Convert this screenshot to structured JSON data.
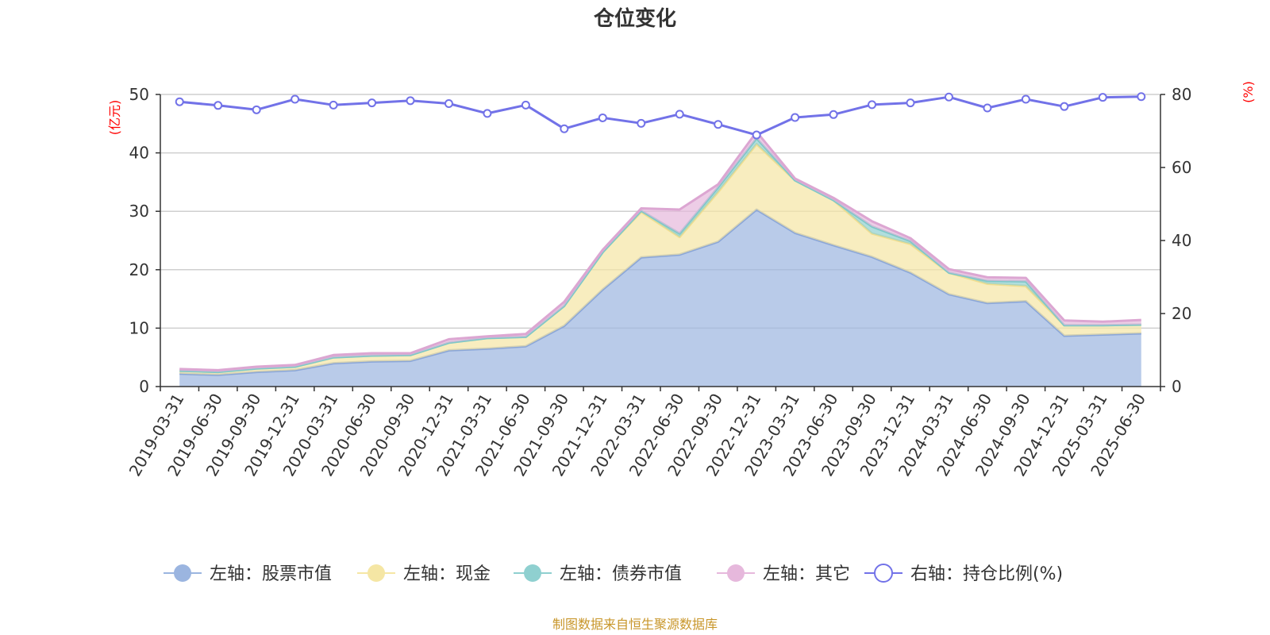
{
  "chart_data": {
    "type": "area",
    "title": "仓位变化",
    "left_axis": {
      "unit": "(亿元)",
      "min": 0,
      "max": 50,
      "ticks": [
        0,
        10,
        20,
        30,
        40,
        50
      ]
    },
    "right_axis": {
      "unit": "(%)",
      "min": 0,
      "max": 80,
      "ticks": [
        0,
        20,
        40,
        60,
        80
      ]
    },
    "grid": true,
    "legend_position": "bottom",
    "categories": [
      "2019-03-31",
      "2019-06-30",
      "2019-09-30",
      "2019-12-31",
      "2020-03-31",
      "2020-06-30",
      "2020-09-30",
      "2020-12-31",
      "2021-03-31",
      "2021-06-30",
      "2021-09-30",
      "2021-12-31",
      "2022-03-31",
      "2022-06-30",
      "2022-09-30",
      "2022-12-31",
      "2023-03-31",
      "2023-06-30",
      "2023-09-30",
      "2023-12-31",
      "2024-03-31",
      "2024-06-30",
      "2024-09-30",
      "2024-12-31",
      "2025-03-31",
      "2025-06-30"
    ],
    "series": [
      {
        "name": "左轴：股票市值",
        "axis": "left",
        "type": "stacked-area",
        "color": "#9bb5e0",
        "values": [
          2.2,
          2.0,
          2.5,
          2.8,
          4.0,
          4.3,
          4.4,
          6.2,
          6.5,
          6.9,
          10.4,
          16.6,
          22.1,
          22.6,
          24.8,
          30.3,
          26.3,
          24.2,
          22.2,
          19.5,
          15.8,
          14.3,
          14.6,
          8.7,
          8.9,
          9.1
        ]
      },
      {
        "name": "左轴：现金",
        "axis": "left",
        "type": "stacked-area",
        "color": "#f5e6a4",
        "values": [
          0.5,
          0.5,
          0.6,
          0.6,
          1.0,
          1.0,
          1.0,
          1.3,
          1.8,
          1.6,
          3.4,
          6.4,
          7.8,
          3.0,
          8.5,
          11.2,
          9.0,
          7.7,
          4.0,
          4.9,
          3.7,
          3.3,
          2.6,
          1.8,
          1.6,
          1.5
        ]
      },
      {
        "name": "左轴：债券市值",
        "axis": "left",
        "type": "stacked-area",
        "color": "#8fd0d0",
        "values": [
          0,
          0,
          0,
          0,
          0,
          0,
          0,
          0,
          0,
          0,
          0,
          0,
          0.2,
          0.6,
          0.8,
          1.0,
          0,
          0,
          1.2,
          0.5,
          0,
          0.5,
          0.8,
          0,
          0,
          0
        ]
      },
      {
        "name": "左轴：其它",
        "axis": "left",
        "type": "stacked-area",
        "color": "#e6b8dc",
        "values": [
          0.3,
          0.3,
          0.3,
          0.3,
          0.4,
          0.4,
          0.3,
          0.6,
          0.3,
          0.5,
          0.7,
          0.4,
          0.4,
          4.1,
          0.5,
          1.1,
          0.3,
          0.4,
          0.9,
          0.5,
          0.6,
          0.6,
          0.6,
          0.8,
          0.6,
          0.8
        ]
      },
      {
        "name": "右轴：持仓比例(%)",
        "axis": "right",
        "type": "line",
        "color": "#7272e8",
        "values": [
          78.0,
          77.0,
          75.8,
          78.7,
          77.1,
          77.7,
          78.3,
          77.5,
          74.8,
          77.1,
          70.6,
          73.6,
          72.1,
          74.6,
          71.8,
          68.9,
          73.7,
          74.5,
          77.2,
          77.7,
          79.3,
          76.3,
          78.7,
          76.7,
          79.2,
          79.4
        ]
      }
    ]
  },
  "legend": [
    {
      "label": "左轴：股票市值",
      "icon": "filled-circle-icon",
      "color": "#9bb5e0"
    },
    {
      "label": "左轴：现金",
      "icon": "filled-circle-icon",
      "color": "#f5e6a4"
    },
    {
      "label": "左轴：债券市值",
      "icon": "filled-circle-icon",
      "color": "#8fd0d0"
    },
    {
      "label": "左轴：其它",
      "icon": "filled-circle-icon",
      "color": "#e6b8dc"
    },
    {
      "label": "右轴：持仓比例(%)",
      "icon": "hollow-circle-icon",
      "color": "#7272e8"
    }
  ],
  "source": "制图数据来自恒生聚源数据库"
}
